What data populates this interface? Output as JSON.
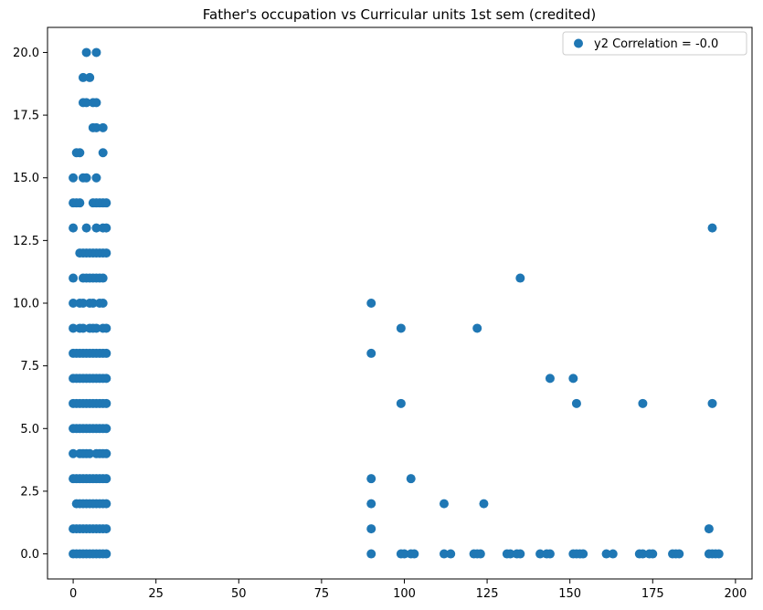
{
  "colors": {
    "series": "#1f77b4",
    "axis": "#000000",
    "legend_border": "#cccccc"
  },
  "chart_data": {
    "type": "scatter",
    "title": "Father's occupation vs Curricular units 1st sem (credited)",
    "xlabel": "",
    "ylabel": "",
    "xlim": [
      -7.75,
      205.0
    ],
    "ylim": [
      -1.0,
      21.0
    ],
    "x_ticks": [
      0,
      25,
      50,
      75,
      100,
      125,
      150,
      175,
      200
    ],
    "x_tick_labels": [
      "0",
      "25",
      "50",
      "75",
      "100",
      "125",
      "150",
      "175",
      "200"
    ],
    "y_ticks": [
      0.0,
      2.5,
      5.0,
      7.5,
      10.0,
      12.5,
      15.0,
      17.5,
      20.0
    ],
    "y_tick_labels": [
      "0.0",
      "2.5",
      "5.0",
      "7.5",
      "10.0",
      "12.5",
      "15.0",
      "17.5",
      "20.0"
    ],
    "grid": false,
    "legend_position": "top-right",
    "series": [
      {
        "name": "y2 Correlation = -0.0",
        "points": [
          [
            0,
            0
          ],
          [
            1,
            0
          ],
          [
            2,
            0
          ],
          [
            3,
            0
          ],
          [
            4,
            0
          ],
          [
            5,
            0
          ],
          [
            6,
            0
          ],
          [
            7,
            0
          ],
          [
            8,
            0
          ],
          [
            9,
            0
          ],
          [
            10,
            0
          ],
          [
            0,
            1
          ],
          [
            1,
            1
          ],
          [
            2,
            1
          ],
          [
            3,
            1
          ],
          [
            4,
            1
          ],
          [
            5,
            1
          ],
          [
            6,
            1
          ],
          [
            7,
            1
          ],
          [
            8,
            1
          ],
          [
            9,
            1
          ],
          [
            10,
            1
          ],
          [
            1,
            2
          ],
          [
            2,
            2
          ],
          [
            3,
            2
          ],
          [
            4,
            2
          ],
          [
            5,
            2
          ],
          [
            6,
            2
          ],
          [
            7,
            2
          ],
          [
            8,
            2
          ],
          [
            9,
            2
          ],
          [
            10,
            2
          ],
          [
            0,
            3
          ],
          [
            1,
            3
          ],
          [
            2,
            3
          ],
          [
            3,
            3
          ],
          [
            4,
            3
          ],
          [
            5,
            3
          ],
          [
            6,
            3
          ],
          [
            7,
            3
          ],
          [
            8,
            3
          ],
          [
            9,
            3
          ],
          [
            10,
            3
          ],
          [
            0,
            4
          ],
          [
            2,
            4
          ],
          [
            3,
            4
          ],
          [
            4,
            4
          ],
          [
            5,
            4
          ],
          [
            7,
            4
          ],
          [
            8,
            4
          ],
          [
            9,
            4
          ],
          [
            10,
            4
          ],
          [
            0,
            5
          ],
          [
            1,
            5
          ],
          [
            2,
            5
          ],
          [
            3,
            5
          ],
          [
            4,
            5
          ],
          [
            5,
            5
          ],
          [
            6,
            5
          ],
          [
            7,
            5
          ],
          [
            8,
            5
          ],
          [
            9,
            5
          ],
          [
            10,
            5
          ],
          [
            0,
            6
          ],
          [
            1,
            6
          ],
          [
            2,
            6
          ],
          [
            3,
            6
          ],
          [
            4,
            6
          ],
          [
            5,
            6
          ],
          [
            6,
            6
          ],
          [
            7,
            6
          ],
          [
            8,
            6
          ],
          [
            9,
            6
          ],
          [
            10,
            6
          ],
          [
            0,
            7
          ],
          [
            1,
            7
          ],
          [
            2,
            7
          ],
          [
            3,
            7
          ],
          [
            4,
            7
          ],
          [
            5,
            7
          ],
          [
            6,
            7
          ],
          [
            7,
            7
          ],
          [
            8,
            7
          ],
          [
            9,
            7
          ],
          [
            10,
            7
          ],
          [
            0,
            8
          ],
          [
            1,
            8
          ],
          [
            2,
            8
          ],
          [
            3,
            8
          ],
          [
            4,
            8
          ],
          [
            5,
            8
          ],
          [
            6,
            8
          ],
          [
            7,
            8
          ],
          [
            8,
            8
          ],
          [
            9,
            8
          ],
          [
            10,
            8
          ],
          [
            0,
            9
          ],
          [
            2,
            9
          ],
          [
            3,
            9
          ],
          [
            5,
            9
          ],
          [
            6,
            9
          ],
          [
            7,
            9
          ],
          [
            9,
            9
          ],
          [
            10,
            9
          ],
          [
            0,
            10
          ],
          [
            2,
            10
          ],
          [
            3,
            10
          ],
          [
            5,
            10
          ],
          [
            6,
            10
          ],
          [
            8,
            10
          ],
          [
            9,
            10
          ],
          [
            0,
            11
          ],
          [
            3,
            11
          ],
          [
            4,
            11
          ],
          [
            5,
            11
          ],
          [
            6,
            11
          ],
          [
            7,
            11
          ],
          [
            8,
            11
          ],
          [
            9,
            11
          ],
          [
            2,
            12
          ],
          [
            3,
            12
          ],
          [
            4,
            12
          ],
          [
            5,
            12
          ],
          [
            6,
            12
          ],
          [
            7,
            12
          ],
          [
            8,
            12
          ],
          [
            9,
            12
          ],
          [
            10,
            12
          ],
          [
            0,
            13
          ],
          [
            4,
            13
          ],
          [
            7,
            13
          ],
          [
            9,
            13
          ],
          [
            10,
            13
          ],
          [
            0,
            14
          ],
          [
            1,
            14
          ],
          [
            2,
            14
          ],
          [
            6,
            14
          ],
          [
            7,
            14
          ],
          [
            8,
            14
          ],
          [
            9,
            14
          ],
          [
            10,
            14
          ],
          [
            0,
            15
          ],
          [
            3,
            15
          ],
          [
            4,
            15
          ],
          [
            7,
            15
          ],
          [
            2,
            16
          ],
          [
            1,
            16
          ],
          [
            9,
            16
          ],
          [
            6,
            17
          ],
          [
            7,
            17
          ],
          [
            9,
            17
          ],
          [
            3,
            18
          ],
          [
            4,
            18
          ],
          [
            6,
            18
          ],
          [
            7,
            18
          ],
          [
            3,
            19
          ],
          [
            5,
            19
          ],
          [
            4,
            20
          ],
          [
            7,
            20
          ],
          [
            90,
            0
          ],
          [
            99,
            0
          ],
          [
            100,
            0
          ],
          [
            102,
            0
          ],
          [
            103,
            0
          ],
          [
            112,
            0
          ],
          [
            114,
            0
          ],
          [
            121,
            0
          ],
          [
            122,
            0
          ],
          [
            123,
            0
          ],
          [
            131,
            0
          ],
          [
            132,
            0
          ],
          [
            134,
            0
          ],
          [
            135,
            0
          ],
          [
            141,
            0
          ],
          [
            143,
            0
          ],
          [
            144,
            0
          ],
          [
            151,
            0
          ],
          [
            152,
            0
          ],
          [
            153,
            0
          ],
          [
            154,
            0
          ],
          [
            161,
            0
          ],
          [
            163,
            0
          ],
          [
            171,
            0
          ],
          [
            172,
            0
          ],
          [
            174,
            0
          ],
          [
            175,
            0
          ],
          [
            181,
            0
          ],
          [
            182,
            0
          ],
          [
            183,
            0
          ],
          [
            192,
            0
          ],
          [
            193,
            0
          ],
          [
            194,
            0
          ],
          [
            195,
            0
          ],
          [
            90,
            1
          ],
          [
            192,
            1
          ],
          [
            90,
            2
          ],
          [
            112,
            2
          ],
          [
            124,
            2
          ],
          [
            90,
            3
          ],
          [
            102,
            3
          ],
          [
            99,
            6
          ],
          [
            152,
            6
          ],
          [
            172,
            6
          ],
          [
            193,
            6
          ],
          [
            144,
            7
          ],
          [
            151,
            7
          ],
          [
            90,
            8
          ],
          [
            99,
            9
          ],
          [
            122,
            9
          ],
          [
            90,
            10
          ],
          [
            135,
            11
          ],
          [
            193,
            13
          ]
        ]
      }
    ]
  }
}
